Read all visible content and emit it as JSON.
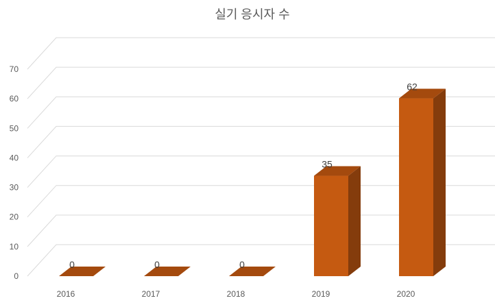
{
  "chart_data": {
    "type": "bar",
    "title": "실기 응시자 수",
    "categories": [
      "2016",
      "2017",
      "2018",
      "2019",
      "2020"
    ],
    "values": [
      0,
      0,
      0,
      35,
      62
    ],
    "data_labels": [
      "0",
      "0",
      "0",
      "35",
      "62"
    ],
    "ylim": [
      0,
      70
    ],
    "yticks": [
      0,
      10,
      20,
      30,
      40,
      50,
      60,
      70
    ],
    "ytick_labels": [
      "0",
      "10",
      "20",
      "30",
      "40",
      "50",
      "60",
      "70"
    ],
    "grid": true,
    "style": "3d-column",
    "colors": {
      "front": "#c55a11",
      "side": "#843c0c",
      "top": "#a44a0e"
    }
  }
}
